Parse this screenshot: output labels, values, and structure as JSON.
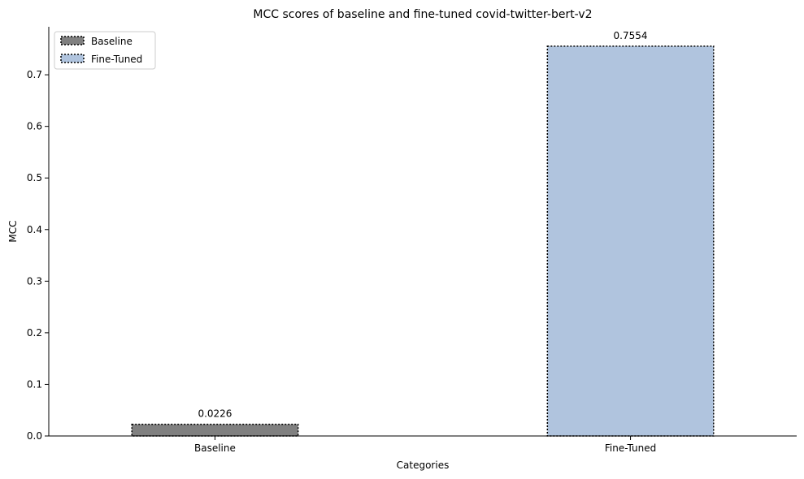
{
  "chart_data": {
    "type": "bar",
    "title": "MCC scores of baseline and fine-tuned covid-twitter-bert-v2",
    "xlabel": "Categories",
    "ylabel": "MCC",
    "categories": [
      "Baseline",
      "Fine-Tuned"
    ],
    "values": [
      0.0226,
      0.7554
    ],
    "data_labels": [
      "0.0226",
      "0.7554"
    ],
    "colors": [
      "#808080",
      "#b0c4de"
    ],
    "ylim": [
      0,
      0.793
    ],
    "yticks": [
      0.0,
      0.1,
      0.2,
      0.3,
      0.4,
      0.5,
      0.6,
      0.7
    ],
    "ytick_labels": [
      "0.0",
      "0.1",
      "0.2",
      "0.3",
      "0.4",
      "0.5",
      "0.6",
      "0.7"
    ],
    "grid": false,
    "legend": {
      "placement": "top-left",
      "entries": [
        "Baseline",
        "Fine-Tuned"
      ]
    }
  }
}
